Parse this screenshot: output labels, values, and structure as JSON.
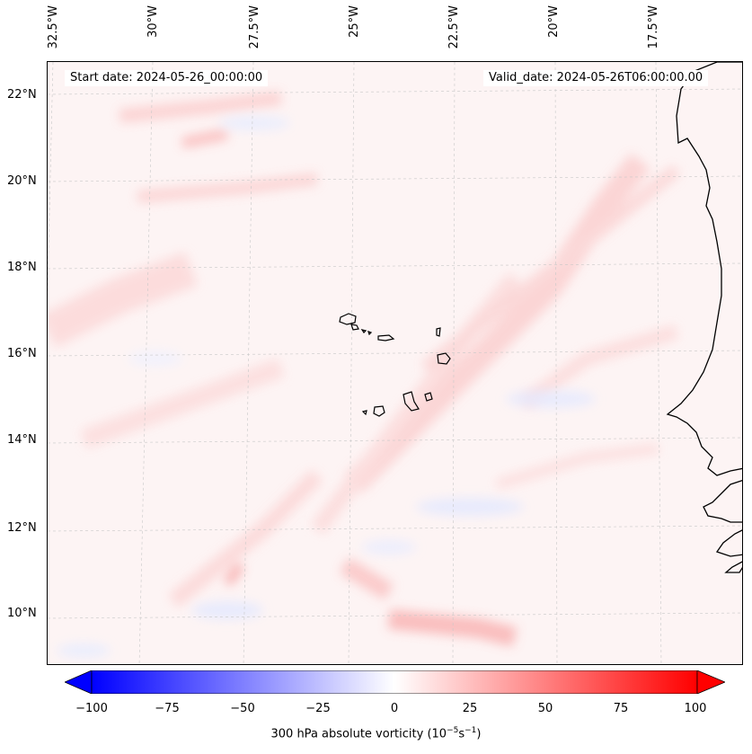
{
  "header": {
    "start_date": "Start date: 2024-05-26_00:00:00",
    "valid_date": "Valid_date: 2024-05-26T06:00:00.00"
  },
  "axes": {
    "longitude_labels": [
      "32.5°W",
      "30°W",
      "27.5°W",
      "25°W",
      "22.5°W",
      "20°W",
      "17.5°W"
    ],
    "latitude_labels": [
      "22°N",
      "20°N",
      "18°N",
      "16°N",
      "14°N",
      "12°N",
      "10°N"
    ]
  },
  "colorbar": {
    "ticks": [
      "−100",
      "−75",
      "−50",
      "−25",
      "0",
      "25",
      "50",
      "75",
      "100"
    ],
    "label_main": "300 hPa absolute vorticity (10",
    "label_exp1": "−5",
    "label_mid": "s",
    "label_exp2": "−1",
    "label_end": ")",
    "min_color": "#0000ff",
    "mid_color": "#ffffff",
    "max_color": "#ff0000"
  },
  "colors": {
    "background_field": "#fdf4f4",
    "coastline": "#000000",
    "gridline": "#c8c8c8"
  }
}
